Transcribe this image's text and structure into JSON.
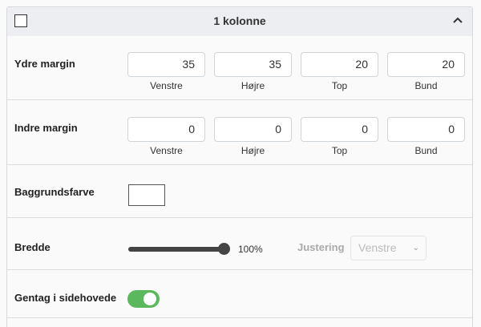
{
  "header": {
    "title": "1 kolonne"
  },
  "outer_margin": {
    "label": "Ydre margin",
    "fields": [
      {
        "label": "Venstre",
        "value": "35"
      },
      {
        "label": "Højre",
        "value": "35"
      },
      {
        "label": "Top",
        "value": "20"
      },
      {
        "label": "Bund",
        "value": "20"
      }
    ]
  },
  "inner_margin": {
    "label": "Indre margin",
    "fields": [
      {
        "label": "Venstre",
        "value": "0"
      },
      {
        "label": "Højre",
        "value": "0"
      },
      {
        "label": "Top",
        "value": "0"
      },
      {
        "label": "Bund",
        "value": "0"
      }
    ]
  },
  "background": {
    "label": "Baggrundsfarve",
    "color": "#ffffff"
  },
  "width": {
    "label": "Bredde",
    "value_percent": 100,
    "value_text": "100%",
    "alignment_label": "Justering",
    "alignment_value": "Venstre"
  },
  "repeat_header": {
    "label": "Gentag i sidehovede",
    "on": true,
    "color": "#5cb85c"
  }
}
